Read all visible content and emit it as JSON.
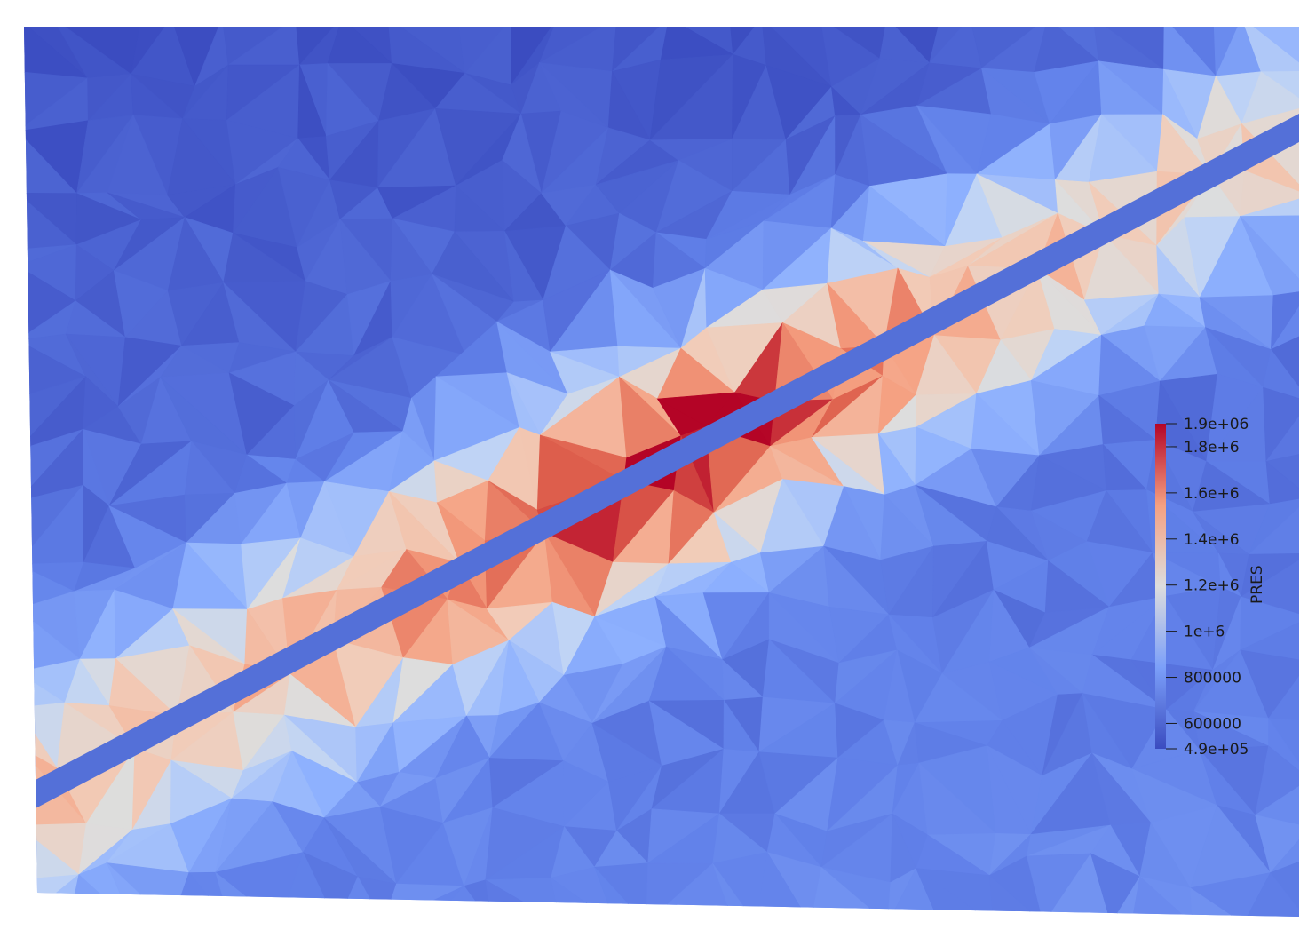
{
  "chart_data": {
    "type": "heatmap",
    "variable": "PRES",
    "colormap": "Cool to Warm",
    "range": [
      490000,
      1900000
    ],
    "colorbar": {
      "title": "PRES",
      "orientation": "vertical",
      "placement": "right",
      "min_label": "4.9e+05",
      "max_label": "1.9e+06",
      "ticks": [
        {
          "value": 600000,
          "label": "600000"
        },
        {
          "value": 800000,
          "label": "800000"
        },
        {
          "value": 1000000,
          "label": "1e+6"
        },
        {
          "value": 1200000,
          "label": "1.2e+6"
        },
        {
          "value": 1400000,
          "label": "1.4e+6"
        },
        {
          "value": 1600000,
          "label": "1.6e+6"
        },
        {
          "value": 1800000,
          "label": "1.8e+6"
        }
      ]
    },
    "colors": {
      "low": "#3b4cc0",
      "mid": "#dddddd",
      "high": "#b40426"
    }
  }
}
